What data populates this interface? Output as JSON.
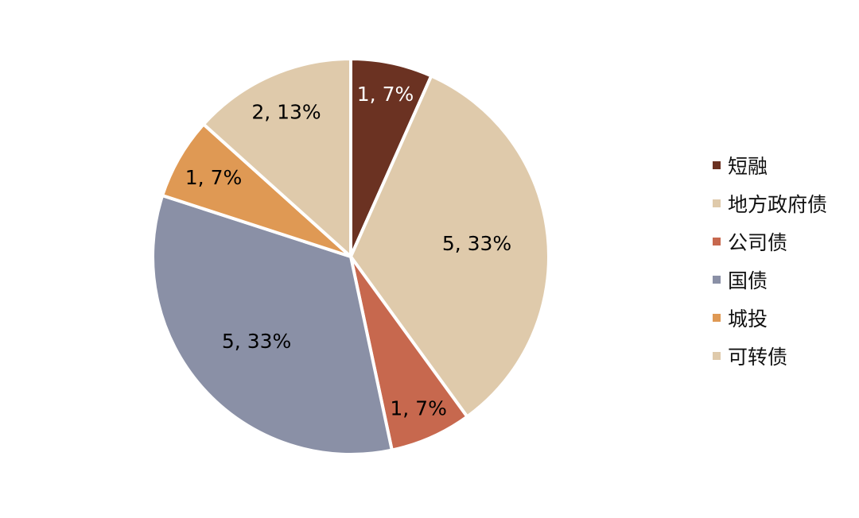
{
  "chart_data": {
    "type": "pie",
    "categories": [
      "短融",
      "地方政府债",
      "公司债",
      "国债",
      "城投",
      "可转债"
    ],
    "values": [
      1,
      5,
      1,
      5,
      1,
      2
    ],
    "percentages": [
      7,
      33,
      7,
      33,
      7,
      13
    ],
    "data_labels": [
      "1, 7%",
      "5, 33%",
      "1, 7%",
      "5, 33%",
      "1, 7%",
      "2, 13%"
    ],
    "colors": [
      "#6b3222",
      "#dfcaab",
      "#c7684e",
      "#8a90a6",
      "#df9954",
      "#dfcaab"
    ],
    "label_colors": [
      "#ffffff",
      "#000000",
      "#000000",
      "#000000",
      "#000000",
      "#000000"
    ],
    "start_angle": "12 o'clock",
    "direction": "clockwise",
    "legend_position": "right",
    "title": ""
  }
}
